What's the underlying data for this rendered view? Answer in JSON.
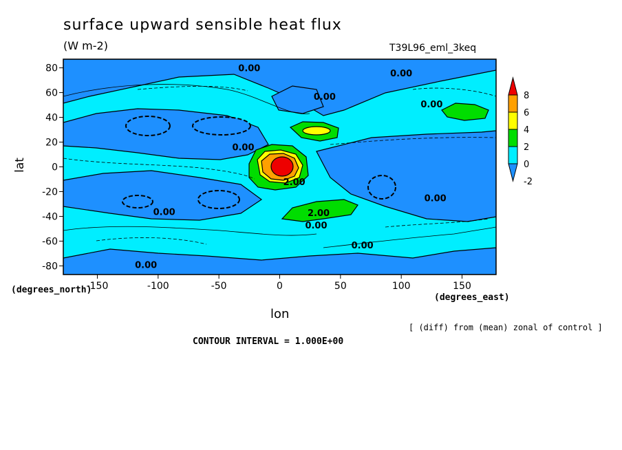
{
  "header": {
    "title": "surface upward sensible heat flux",
    "units": "(W m-2)",
    "run_id": "T39L96_eml_3keq"
  },
  "axes": {
    "ylabel": "lat",
    "yunits": "(degrees_north)",
    "xlabel": "lon",
    "xunits": "(degrees_east)"
  },
  "footer": {
    "diff_note": "[ (diff) from (mean) zonal of control ]",
    "contour_interval": "CONTOUR INTERVAL = 1.000E+00"
  },
  "chart_data": {
    "type": "heatmap",
    "title": "surface upward sensible heat flux",
    "xlabel": "lon",
    "ylabel": "lat",
    "xlim": [
      -178,
      178
    ],
    "ylim": [
      -87,
      87
    ],
    "xticks": [
      -150,
      -100,
      -50,
      0,
      50,
      100,
      150
    ],
    "yticks": [
      80,
      60,
      40,
      20,
      0,
      -20,
      -40,
      -60,
      -80
    ],
    "colorbar": {
      "levels": [
        -2,
        0,
        2,
        4,
        6,
        8
      ],
      "labels": [
        "8",
        "6",
        "4",
        "2",
        "0",
        "-2"
      ],
      "colors": [
        "#1e90ff",
        "#00eeff",
        "#00dd00",
        "#ffff00",
        "#ffa000",
        "#ee0000"
      ]
    },
    "contour_labels": [
      {
        "text": "0.00",
        "lon": -25,
        "lat": 80
      },
      {
        "text": "0.00",
        "lon": 100,
        "lat": 76
      },
      {
        "text": "0.00",
        "lon": 37,
        "lat": 57
      },
      {
        "text": "0.00",
        "lon": 125,
        "lat": 51
      },
      {
        "text": "0.00",
        "lon": -30,
        "lat": 16
      },
      {
        "text": "2.00",
        "lon": 12,
        "lat": -12
      },
      {
        "text": "0.00",
        "lon": -95,
        "lat": -36
      },
      {
        "text": "0.00",
        "lon": 128,
        "lat": -25
      },
      {
        "text": "2.00",
        "lon": 32,
        "lat": -37
      },
      {
        "text": "0.00",
        "lon": 30,
        "lat": -47
      },
      {
        "text": "0.00",
        "lon": 68,
        "lat": -63
      },
      {
        "text": "0.00",
        "lon": -110,
        "lat": -79
      }
    ],
    "features": [
      {
        "value": 8,
        "lon": 2,
        "lat": 1,
        "note": "max warm anomaly near equator"
      },
      {
        "value": 4,
        "lon": 30,
        "lat": 30
      },
      {
        "value": 2,
        "lon": 45,
        "lat": -37
      },
      {
        "value": 2,
        "lon": 140,
        "lat": 45
      },
      {
        "value": -2,
        "lon": -100,
        "lat": 33
      },
      {
        "value": -2,
        "lon": -50,
        "lat": 35
      },
      {
        "value": -2,
        "lon": -55,
        "lat": -27
      },
      {
        "value": -2,
        "lon": -120,
        "lat": -30
      },
      {
        "value": -2,
        "lon": 90,
        "lat": -22
      }
    ]
  }
}
